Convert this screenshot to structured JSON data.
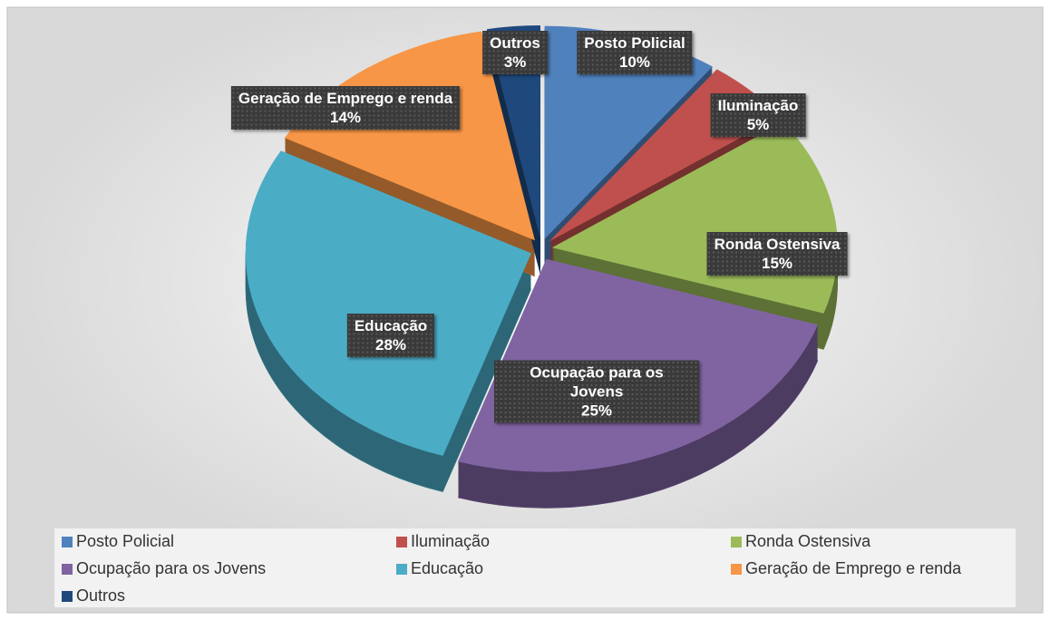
{
  "chart_data": {
    "type": "pie",
    "categories": [
      "Posto Policial",
      "Iluminação",
      "Ronda Ostensiva",
      "Ocupação para os Jovens",
      "Educação",
      "Geração de Emprego e renda",
      "Outros"
    ],
    "values": [
      10,
      5,
      15,
      25,
      28,
      14,
      3
    ],
    "value_labels": [
      "10%",
      "5%",
      "15%",
      "25%",
      "28%",
      "14%",
      "3%"
    ],
    "colors": [
      "#4f81bd",
      "#c0504d",
      "#9bbb59",
      "#8064a2",
      "#4bacc6",
      "#f79646",
      "#1f497d"
    ],
    "legend": "bottom"
  }
}
